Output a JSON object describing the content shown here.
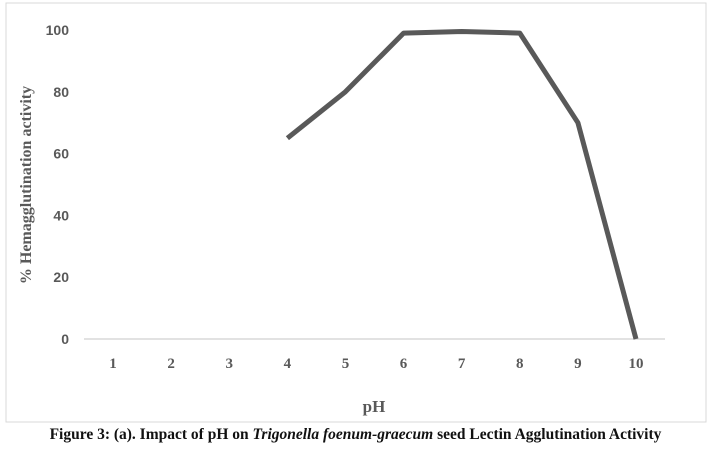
{
  "chart_data": {
    "type": "line",
    "title": "",
    "xlabel": "pH",
    "ylabel": "% Hemagglutination activity",
    "categories": [
      "1",
      "2",
      "3",
      "4",
      "5",
      "6",
      "7",
      "8",
      "9",
      "10"
    ],
    "series": [
      {
        "values": [
          null,
          null,
          null,
          65,
          80,
          99,
          99.5,
          99,
          70,
          0
        ],
        "color": "#595959"
      }
    ],
    "ylim": [
      0,
      100
    ],
    "yticks": [
      0,
      20,
      40,
      60,
      80,
      100
    ],
    "grid": false,
    "legend": "none"
  },
  "caption": {
    "prefix": "Figure 3: (a). Impact of pH on ",
    "italic": "Trigonella foenum-graecum",
    "suffix": " seed Lectin Agglutination Activity"
  }
}
